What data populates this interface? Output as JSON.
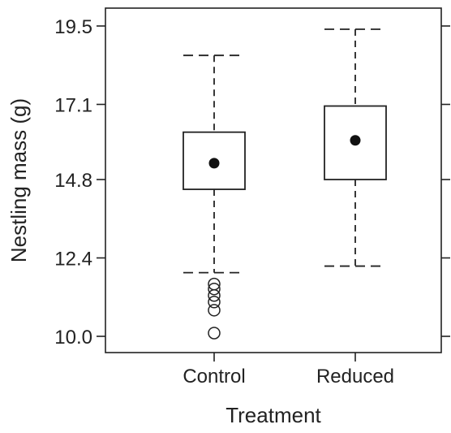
{
  "chart_data": {
    "type": "box",
    "xlabel": "Treatment",
    "ylabel": "Nestling mass (g)",
    "ylim": [
      9.5,
      20.0
    ],
    "yticks": [
      "19.5",
      "17.1",
      "14.8",
      "12.4",
      "10.0"
    ],
    "ytick_values": [
      19.5,
      17.1,
      14.8,
      12.4,
      10.0
    ],
    "grid": false,
    "legend": "none",
    "categories": [
      "Control",
      "Reduced"
    ],
    "boxes": [
      {
        "category": "Control",
        "whisker_low": 11.95,
        "q1": 14.5,
        "q3": 16.25,
        "whisker_high": 18.6,
        "mean": 15.3,
        "outliers": [
          11.6,
          11.45,
          11.25,
          11.05,
          10.8,
          10.1
        ]
      },
      {
        "category": "Reduced",
        "whisker_low": 12.15,
        "q1": 14.8,
        "q3": 17.05,
        "whisker_high": 19.4,
        "mean": 16.0,
        "outliers": []
      }
    ]
  },
  "colors": {
    "stroke": "#222222",
    "mean_marker": "#111111",
    "background": "#ffffff"
  }
}
